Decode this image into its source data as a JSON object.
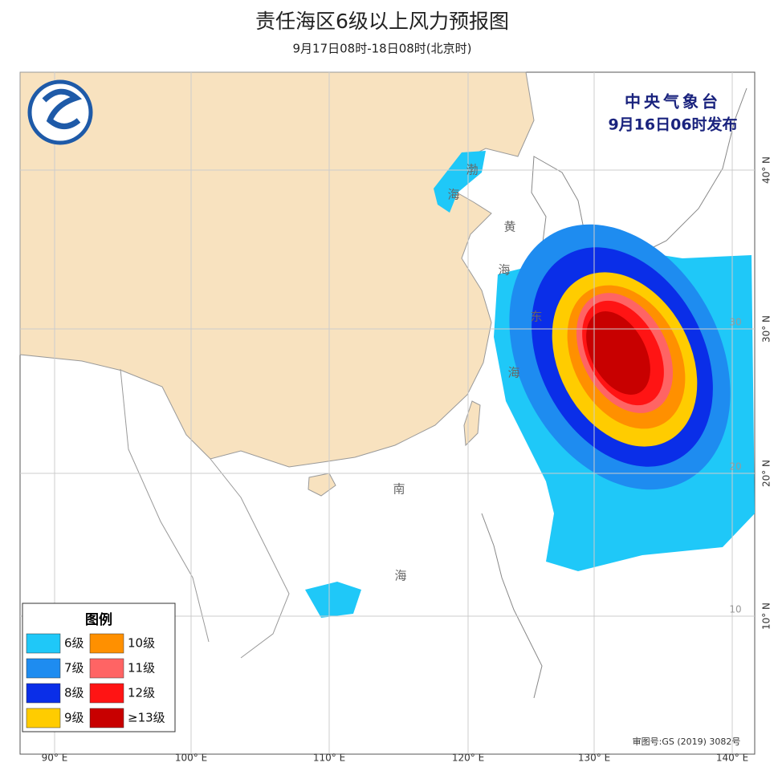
{
  "header": {
    "title": "责任海区6级以上风力预报图",
    "subtitle": "9月17日08时-18日08时(北京时)"
  },
  "issuer": {
    "name": "中央气象台",
    "issued": "9月16日06时发布"
  },
  "legend": {
    "title": "图例",
    "items": [
      {
        "label": "6级",
        "color": "#1fc8f8"
      },
      {
        "label": "7级",
        "color": "#1e8cf0"
      },
      {
        "label": "8级",
        "color": "#0a2ee8"
      },
      {
        "label": "9级",
        "color": "#ffcc00"
      },
      {
        "label": "10级",
        "color": "#ff9000"
      },
      {
        "label": "11级",
        "color": "#ff6464"
      },
      {
        "label": "12级",
        "color": "#ff1414"
      },
      {
        "label": "≥13级",
        "color": "#c80000"
      }
    ]
  },
  "sea_labels": [
    "渤",
    "海",
    "黄",
    "海",
    "东",
    "海",
    "南",
    "海"
  ],
  "lon_labels": [
    "90° E",
    "100° E",
    "110° E",
    "120° E",
    "130° E",
    "140° E"
  ],
  "lat_labels": [
    "40° N",
    "30° N",
    "20° N",
    "10° N"
  ],
  "inner_lat_labels": [
    "30",
    "20",
    "10"
  ],
  "approval": "审图号:GS (2019) 3082号"
}
